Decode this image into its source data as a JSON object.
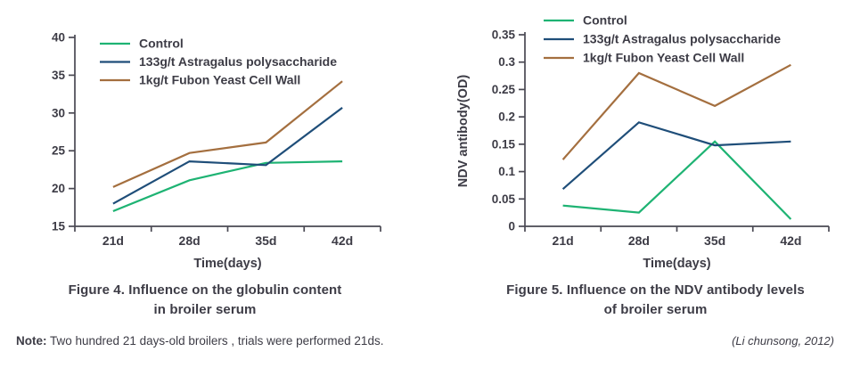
{
  "chart_data": [
    {
      "type": "line",
      "title": "Figure 4. Influence on the globulin content in broiler serum",
      "caption_lines": [
        "Figure 4. Influence on the globulin content",
        "in broiler serum"
      ],
      "xlabel": "Time(days)",
      "ylabel": "",
      "categories": [
        "21d",
        "28d",
        "35d",
        "42d"
      ],
      "ylim": [
        15,
        40
      ],
      "yticks": [
        15,
        20,
        25,
        30,
        35,
        40
      ],
      "ytick_labels": [
        "15",
        "20",
        "25",
        "30",
        "35",
        "40"
      ],
      "grid": false,
      "legend_position": "top-left-inside",
      "series": [
        {
          "name": "Control",
          "color": "#1eb373",
          "values": [
            17,
            21.1,
            23.4,
            23.6
          ]
        },
        {
          "name": "133g/t Astragalus polysaccharide",
          "color": "#1f4e79",
          "values": [
            18,
            23.6,
            23.1,
            30.7
          ]
        },
        {
          "name": "1kg/t Fubon Yeast Cell Wall",
          "color": "#a46f3f",
          "values": [
            20.2,
            24.7,
            26.1,
            34.2
          ]
        }
      ]
    },
    {
      "type": "line",
      "title": "Figure 5. Influence on the NDV antibody levels of broiler serum",
      "caption_lines": [
        "Figure 5. Influence on the NDV antibody levels",
        "of broiler serum"
      ],
      "xlabel": "Time(days)",
      "ylabel": "NDV antibody(OD)",
      "categories": [
        "21d",
        "28d",
        "35d",
        "42d"
      ],
      "ylim": [
        0,
        0.35
      ],
      "yticks": [
        0,
        0.05,
        0.1,
        0.15,
        0.2,
        0.25,
        0.3,
        0.35
      ],
      "ytick_labels": [
        "0",
        "0.05",
        "0.1",
        "0.15",
        "0.2",
        "0.25",
        "0.3",
        "0.35"
      ],
      "grid": false,
      "legend_position": "top-left-inside",
      "series": [
        {
          "name": "Control",
          "color": "#1eb373",
          "values": [
            0.038,
            0.025,
            0.155,
            0.013
          ]
        },
        {
          "name": "133g/t Astragalus polysaccharide",
          "color": "#1f4e79",
          "values": [
            0.068,
            0.19,
            0.148,
            0.155
          ]
        },
        {
          "name": "1kg/t Fubon Yeast Cell Wall",
          "color": "#a46f3f",
          "values": [
            0.122,
            0.28,
            0.22,
            0.295
          ]
        }
      ]
    }
  ],
  "note": {
    "label": "Note:",
    "text": "Two hundred 21 days-old broilers , trials were performed 21ds."
  },
  "citation": "(Li chunsong, 2012)",
  "colors": {
    "text": "#3d3c46",
    "axis": "#4a4953",
    "control": "#1eb373",
    "astragalus": "#1f4e79",
    "fubon": "#a46f3f"
  }
}
